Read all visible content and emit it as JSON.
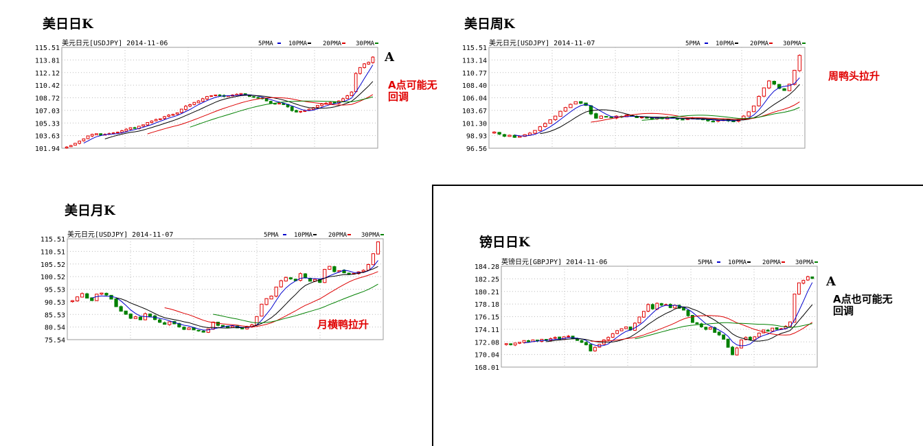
{
  "headings": {
    "usdjpy_daily": "美日日K",
    "usdjpy_weekly": "美日周K",
    "usdjpy_monthly": "美日月K",
    "gbpjpy_daily": "镑日日K"
  },
  "notes": {
    "a_marker": "A",
    "daily_note_l1": "A点可能无",
    "daily_note_l2": "回调",
    "weekly_note": "周鸭头拉升",
    "monthly_note": "月横鸭拉升",
    "gbp_marker": "A",
    "gbp_note_l1": "A点也可能无",
    "gbp_note_l2": "回调"
  },
  "colors": {
    "up": "#e00000",
    "down": "#008000",
    "ma5": "#0000cc",
    "ma10": "#000000",
    "ma20": "#dd0000",
    "ma30": "#008000",
    "grid": "#bbbbbb",
    "border": "#999999"
  },
  "chart_data": [
    {
      "id": "usdjpy_daily",
      "type": "candlestick",
      "title": "美元日元[USDJPY] 2014-11-06",
      "legend": [
        "5PMA",
        "10PMA",
        "20PMA",
        "30PMA"
      ],
      "y_ticks": [
        "115.51",
        "113.81",
        "112.12",
        "110.42",
        "108.72",
        "107.03",
        "105.33",
        "103.63",
        "101.94"
      ],
      "ylim": [
        101.94,
        115.51
      ],
      "close": [
        102.1,
        102.3,
        102.6,
        102.9,
        103.2,
        103.6,
        103.8,
        103.9,
        103.7,
        103.8,
        103.9,
        104.0,
        104.1,
        104.3,
        104.5,
        104.7,
        104.6,
        104.9,
        105.1,
        105.4,
        105.6,
        105.8,
        105.9,
        106.2,
        106.4,
        106.5,
        106.7,
        107.2,
        107.6,
        107.8,
        108.1,
        108.3,
        108.6,
        108.9,
        109.0,
        109.1,
        109.0,
        108.9,
        109.0,
        109.1,
        109.2,
        109.3,
        109.1,
        108.9,
        108.8,
        108.7,
        108.6,
        108.3,
        108.0,
        107.9,
        108.0,
        107.8,
        107.5,
        107.0,
        106.8,
        106.9,
        107.0,
        107.2,
        107.4,
        107.7,
        107.9,
        108.0,
        108.1,
        108.0,
        108.3,
        108.6,
        109.0,
        109.5,
        112.0,
        112.8,
        113.3,
        113.5,
        114.2
      ]
    },
    {
      "id": "usdjpy_weekly",
      "type": "candlestick",
      "title": "美元日元[USDJPY] 2014-11-07",
      "legend": [
        "5PMA",
        "10PMA",
        "20PMA",
        "30PMA"
      ],
      "y_ticks": [
        "115.51",
        "113.14",
        "110.77",
        "108.40",
        "106.04",
        "103.67",
        "101.30",
        "98.93",
        "96.56"
      ],
      "ylim": [
        96.56,
        115.51
      ],
      "close": [
        99.6,
        99.2,
        98.8,
        99.0,
        98.6,
        98.8,
        99.1,
        99.4,
        99.9,
        100.6,
        101.2,
        101.9,
        102.6,
        103.5,
        104.2,
        104.8,
        105.3,
        105.0,
        104.6,
        103.0,
        102.2,
        102.6,
        102.4,
        102.3,
        102.6,
        102.4,
        102.8,
        102.6,
        102.3,
        102.4,
        102.2,
        102.0,
        102.3,
        102.1,
        102.4,
        102.2,
        102.0,
        101.9,
        102.1,
        102.2,
        102.0,
        101.9,
        101.7,
        101.6,
        101.8,
        101.9,
        101.7,
        101.6,
        101.9,
        102.6,
        103.4,
        104.5,
        106.3,
        107.9,
        109.2,
        108.6,
        107.8,
        107.4,
        108.6,
        111.2,
        114.0
      ]
    },
    {
      "id": "usdjpy_monthly",
      "type": "candlestick",
      "title": "美元日元[USDJPY] 2014-11-07",
      "legend": [
        "5PMA",
        "10PMA",
        "20PMA",
        "30PMA"
      ],
      "y_ticks": [
        "115.51",
        "110.51",
        "105.52",
        "100.52",
        "95.53",
        "90.53",
        "85.53",
        "80.54",
        "75.54"
      ],
      "ylim": [
        75.54,
        115.51
      ],
      "close": [
        91.0,
        92.5,
        93.8,
        92.0,
        91.0,
        93.6,
        94.0,
        93.2,
        91.6,
        88.6,
        86.8,
        85.6,
        84.0,
        84.6,
        83.4,
        85.8,
        84.8,
        83.5,
        82.4,
        81.6,
        82.6,
        81.8,
        80.6,
        79.6,
        80.2,
        79.4,
        79.0,
        78.5,
        79.8,
        82.5,
        81.2,
        80.8,
        80.3,
        80.9,
        80.2,
        79.8,
        80.7,
        81.4,
        84.7,
        89.6,
        91.8,
        92.8,
        96.4,
        98.9,
        100.2,
        99.6,
        98.9,
        101.7,
        100.0,
        98.7,
        99.4,
        98.2,
        103.4,
        104.6,
        102.5,
        102.9,
        102.0,
        101.6,
        101.8,
        102.4,
        103.0,
        105.3,
        109.6,
        114.3
      ]
    },
    {
      "id": "gbpjpy_daily",
      "type": "candlestick",
      "title": "英镑日元[GBPJPY] 2014-11-06",
      "legend": [
        "5PMA",
        "10PMA",
        "20PMA",
        "30PMA"
      ],
      "y_ticks": [
        "184.28",
        "182.25",
        "180.21",
        "178.18",
        "176.15",
        "174.11",
        "172.08",
        "170.04",
        "168.01"
      ],
      "ylim": [
        168.01,
        184.28
      ],
      "close": [
        171.8,
        171.6,
        171.9,
        172.0,
        172.3,
        172.1,
        172.4,
        172.2,
        172.5,
        172.3,
        172.6,
        172.8,
        172.5,
        172.9,
        173.0,
        172.6,
        172.3,
        172.0,
        171.6,
        170.6,
        171.2,
        171.7,
        172.4,
        172.8,
        173.4,
        173.9,
        174.2,
        174.5,
        174.0,
        175.1,
        176.1,
        177.0,
        178.1,
        177.4,
        178.3,
        178.0,
        178.1,
        177.6,
        178.0,
        177.5,
        177.2,
        176.3,
        175.2,
        175.0,
        174.5,
        174.1,
        174.4,
        173.6,
        173.2,
        172.5,
        171.2,
        170.0,
        171.1,
        172.4,
        172.8,
        172.4,
        172.9,
        173.5,
        174.0,
        173.8,
        174.3,
        174.1,
        174.2,
        174.6,
        175.3,
        179.8,
        181.6,
        182.0,
        182.6,
        182.3
      ]
    }
  ]
}
